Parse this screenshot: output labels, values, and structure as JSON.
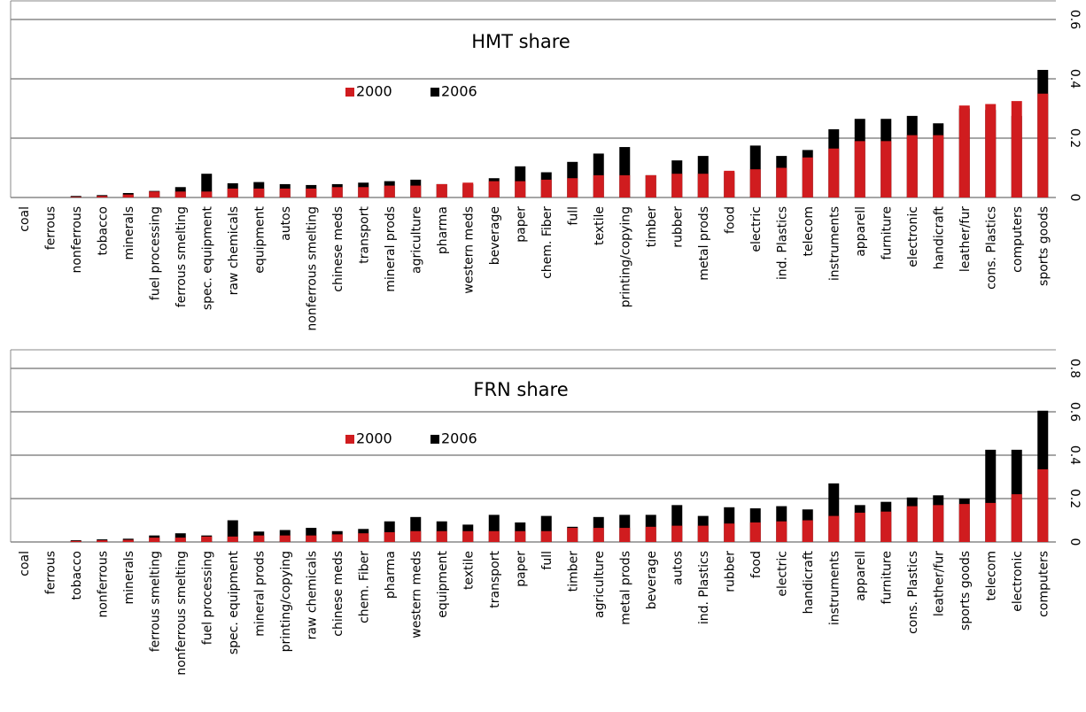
{
  "chart_data": [
    {
      "type": "bar",
      "title": "HMT share",
      "categories": [
        "coal",
        "ferrous",
        "nonferrous",
        "tobacco",
        "minerals",
        "fuel processing",
        "ferrous smelting",
        "spec. equipment",
        "raw chemicals",
        "equipment",
        "autos",
        "nonferrous smelting",
        "chinese meds",
        "transport",
        "mineral prods",
        "agriculture",
        "pharma",
        "western meds",
        "beverage",
        "paper",
        "chem. Fiber",
        "full",
        "textile",
        "printing/copying",
        "timber",
        "rubber",
        "metal prods",
        "food",
        "electric",
        "ind. Plastics",
        "telecom",
        "instruments",
        "apparell",
        "furniture",
        "electronic",
        "handicraft",
        "leather/fur",
        "cons. Plastics",
        "computers",
        "sports goods"
      ],
      "series": [
        {
          "name": "2006",
          "color": "#000000",
          "values": [
            0,
            0,
            0.005,
            0.008,
            0.015,
            0.022,
            0.035,
            0.08,
            0.048,
            0.052,
            0.045,
            0.042,
            0.045,
            0.05,
            0.055,
            0.06,
            0.045,
            0.045,
            0.065,
            0.105,
            0.085,
            0.12,
            0.148,
            0.17,
            0.075,
            0.125,
            0.14,
            0.085,
            0.175,
            0.14,
            0.16,
            0.23,
            0.265,
            0.265,
            0.275,
            0.25,
            0.3,
            0.295,
            0.275,
            0.43
          ]
        },
        {
          "name": "2000",
          "color": "#d01c1f",
          "values": [
            0,
            0,
            0.002,
            0.005,
            0.01,
            0.02,
            0.02,
            0.02,
            0.03,
            0.03,
            0.03,
            0.03,
            0.035,
            0.035,
            0.04,
            0.04,
            0.045,
            0.05,
            0.055,
            0.055,
            0.06,
            0.065,
            0.075,
            0.075,
            0.075,
            0.08,
            0.08,
            0.09,
            0.095,
            0.1,
            0.135,
            0.165,
            0.19,
            0.19,
            0.21,
            0.21,
            0.31,
            0.315,
            0.325,
            0.35
          ]
        }
      ],
      "ylim": [
        0,
        0.6
      ],
      "yticks": [
        0,
        0.2,
        0.4,
        0.6
      ],
      "grid": true
    },
    {
      "type": "bar",
      "title": "FRN share",
      "categories": [
        "coal",
        "ferrous",
        "tobacco",
        "nonferrous",
        "minerals",
        "ferrous smelting",
        "nonferrous smelting",
        "fuel processing",
        "spec. equipment",
        "mineral prods",
        "printing/copying",
        "raw chemicals",
        "chinese meds",
        "chem. Fiber",
        "pharma",
        "western meds",
        "equipment",
        "textile",
        "transport",
        "paper",
        "full",
        "timber",
        "agriculture",
        "metal prods",
        "beverage",
        "autos",
        "ind. Plastics",
        "rubber",
        "food",
        "electric",
        "handicraft",
        "instruments",
        "apparell",
        "furniture",
        "cons. Plastics",
        "leather/fur",
        "sports goods",
        "telecom",
        "electronic",
        "computers"
      ],
      "series": [
        {
          "name": "2006",
          "color": "#000000",
          "values": [
            0,
            0,
            0.008,
            0.012,
            0.015,
            0.03,
            0.04,
            0.03,
            0.1,
            0.048,
            0.055,
            0.065,
            0.05,
            0.06,
            0.095,
            0.115,
            0.095,
            0.08,
            0.125,
            0.09,
            0.12,
            0.07,
            0.115,
            0.125,
            0.125,
            0.17,
            0.12,
            0.16,
            0.155,
            0.165,
            0.15,
            0.27,
            0.17,
            0.185,
            0.205,
            0.215,
            0.2,
            0.425,
            0.425,
            0.605
          ]
        },
        {
          "name": "2000",
          "color": "#d01c1f",
          "values": [
            0,
            0,
            0.005,
            0.008,
            0.01,
            0.02,
            0.02,
            0.025,
            0.025,
            0.03,
            0.03,
            0.03,
            0.035,
            0.04,
            0.045,
            0.05,
            0.05,
            0.05,
            0.05,
            0.05,
            0.05,
            0.065,
            0.065,
            0.065,
            0.07,
            0.075,
            0.075,
            0.085,
            0.09,
            0.095,
            0.1,
            0.12,
            0.135,
            0.14,
            0.165,
            0.17,
            0.175,
            0.18,
            0.22,
            0.335
          ]
        }
      ],
      "ylim": [
        0,
        0.8
      ],
      "yticks": [
        0,
        0.2,
        0.4,
        0.6,
        0.8
      ],
      "grid": true
    }
  ]
}
